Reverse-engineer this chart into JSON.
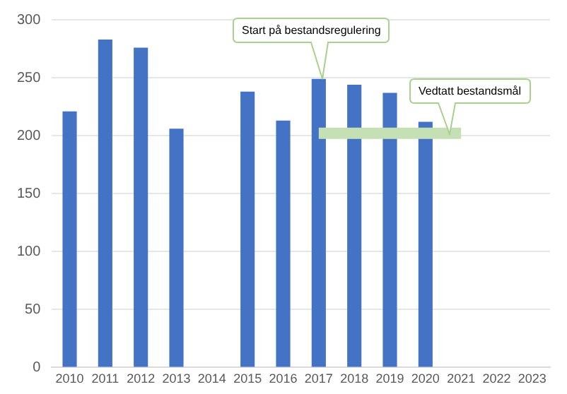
{
  "chart_data": {
    "type": "bar",
    "categories": [
      "2010",
      "2011",
      "2012",
      "2013",
      "2014",
      "2015",
      "2016",
      "2017",
      "2018",
      "2019",
      "2020",
      "2021",
      "2022",
      "2023"
    ],
    "series": [
      {
        "color": "#4472c4",
        "values": [
          221,
          283,
          276,
          206,
          null,
          238,
          213,
          249,
          244,
          237,
          212,
          null,
          null,
          null
        ]
      },
      {
        "type": "line",
        "color": "#c5e0b4",
        "values": [
          null,
          null,
          null,
          null,
          null,
          null,
          null,
          202,
          202,
          202,
          202,
          202,
          null,
          null
        ]
      }
    ],
    "ylim": [
      0,
      300
    ],
    "yticks": [
      0,
      50,
      100,
      150,
      200,
      250,
      300
    ],
    "grid": "y",
    "legend": false,
    "annotations": [
      "Start på bestandsregulering",
      "Vedtatt bestandsmål"
    ]
  }
}
